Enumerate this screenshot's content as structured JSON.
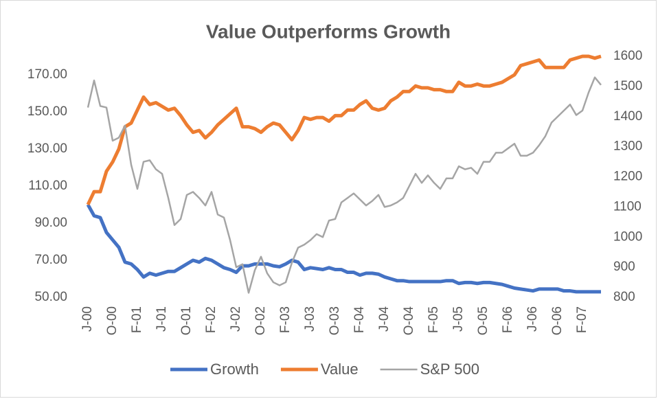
{
  "chart_data": {
    "type": "line",
    "title": "Value Outperforms Growth",
    "categories": [
      "J-00",
      null,
      null,
      null,
      "O-00",
      null,
      null,
      null,
      "F-01",
      null,
      null,
      null,
      "J-01",
      null,
      null,
      null,
      "O-01",
      null,
      null,
      null,
      "F-02",
      null,
      null,
      null,
      "J-02",
      null,
      null,
      null,
      "O-02",
      null,
      null,
      null,
      "F-03",
      null,
      null,
      null,
      "J-03",
      null,
      null,
      null,
      "O-03",
      null,
      null,
      null,
      "F-04",
      null,
      null,
      null,
      "J-04",
      null,
      null,
      null,
      "O-04",
      null,
      null,
      null,
      "F-05",
      null,
      null,
      null,
      "J-05",
      null,
      null,
      null,
      "O-05",
      null,
      null,
      null,
      "F-06",
      null,
      null,
      null,
      "J-06",
      null,
      null,
      null,
      "O-06",
      null,
      null,
      null,
      "F-07",
      null,
      null,
      null
    ],
    "series": [
      {
        "name": "Growth",
        "color": "#4472c4",
        "values": [
          100,
          94,
          93,
          85,
          81,
          77,
          69,
          68,
          65,
          61,
          63,
          62,
          63,
          64,
          64,
          66,
          68,
          70,
          69,
          71,
          70,
          68,
          66,
          65,
          63.5,
          67,
          67,
          68,
          68,
          68,
          67,
          66.5,
          68,
          70,
          69,
          65,
          66,
          65.5,
          65,
          66,
          65,
          65,
          63.5,
          63.5,
          62,
          63,
          63,
          62.5,
          61,
          60,
          59,
          59,
          58.5,
          58.5,
          58.5,
          58.5,
          58.5,
          58.5,
          59,
          59,
          57.5,
          58,
          58,
          57.5,
          58,
          58,
          57.5,
          57,
          56,
          55,
          54.5,
          54,
          53.5,
          54.5,
          54.5,
          54.5,
          54.5,
          53.5,
          53.5,
          53,
          53,
          53,
          53,
          53
        ]
      },
      {
        "name": "Value",
        "color": "#ed7d31",
        "values": [
          100,
          107,
          107,
          118,
          123,
          130,
          142,
          144,
          151,
          158,
          154,
          155,
          153,
          151,
          152,
          148,
          143,
          139,
          140,
          136,
          139,
          143,
          146,
          149,
          152,
          142,
          142,
          141,
          139,
          142,
          144,
          143,
          139,
          135,
          140,
          147,
          146,
          147,
          147,
          145,
          148,
          148,
          151,
          151,
          154,
          156,
          152,
          151,
          152,
          156,
          158,
          161,
          161,
          164,
          163,
          163,
          162,
          162,
          161,
          161,
          166,
          164,
          164,
          165,
          164,
          164,
          165,
          166,
          168,
          170,
          175,
          176,
          177,
          178,
          174,
          174,
          174,
          174,
          178,
          179,
          180,
          180,
          179,
          180
        ]
      },
      {
        "name": "S&P 500",
        "color": "#a5a5a5",
        "axis": "y2",
        "values": [
          1430,
          1520,
          1435,
          1430,
          1320,
          1330,
          1370,
          1240,
          1160,
          1250,
          1255,
          1225,
          1210,
          1130,
          1040,
          1060,
          1140,
          1150,
          1130,
          1105,
          1150,
          1075,
          1065,
          990,
          900,
          910,
          815,
          890,
          935,
          880,
          850,
          840,
          850,
          915,
          965,
          975,
          990,
          1010,
          1000,
          1055,
          1060,
          1115,
          1130,
          1145,
          1125,
          1105,
          1120,
          1140,
          1100,
          1105,
          1115,
          1130,
          1170,
          1210,
          1180,
          1205,
          1180,
          1160,
          1195,
          1195,
          1235,
          1225,
          1230,
          1210,
          1250,
          1250,
          1280,
          1280,
          1295,
          1310,
          1270,
          1270,
          1280,
          1305,
          1335,
          1380,
          1400,
          1420,
          1440,
          1405,
          1420,
          1480,
          1530,
          1505
        ]
      }
    ],
    "ylim": [
      50,
      180
    ],
    "yticks": [
      {
        "value": 50,
        "label": "50.00"
      },
      {
        "value": 70,
        "label": "70.00"
      },
      {
        "value": 90,
        "label": "90.00"
      },
      {
        "value": 110,
        "label": "110.00"
      },
      {
        "value": 130,
        "label": "130.00"
      },
      {
        "value": 150,
        "label": "150.00"
      },
      {
        "value": 170,
        "label": "170.00"
      }
    ],
    "y2lim": [
      800,
      1600
    ],
    "y2ticks": [
      800,
      900,
      1000,
      1100,
      1200,
      1300,
      1400,
      1500,
      1600
    ],
    "grid": false,
    "legend": "bottom"
  }
}
